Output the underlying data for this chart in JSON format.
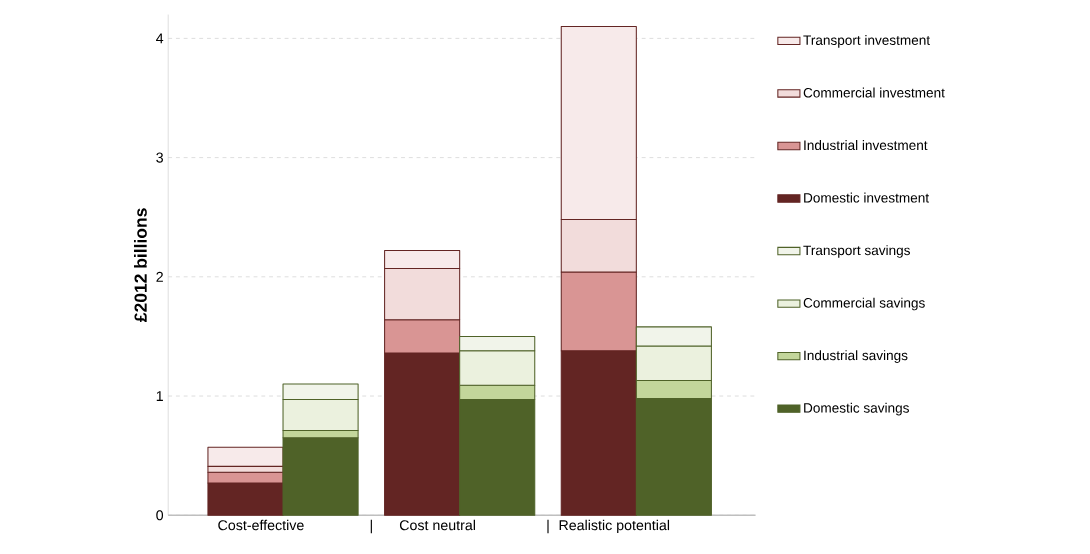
{
  "chart_data": {
    "type": "bar",
    "stacked": true,
    "ylabel": "£2012 billions",
    "categories": [
      "Cost-effective",
      null,
      "Cost neutral",
      null,
      "Realistic potential",
      null
    ],
    "annotations": [
      "|",
      "|"
    ],
    "ylim": [
      0,
      4.2
    ],
    "yticks": [
      0,
      1,
      2,
      3,
      4
    ],
    "grid": "y",
    "legend": "right",
    "series": [
      {
        "name": "Domestic investment",
        "color": "#632523",
        "values": [
          0.27,
          null,
          1.36,
          null,
          1.38,
          null
        ]
      },
      {
        "name": "Industrial investment",
        "color": "#d99594",
        "values": [
          0.09,
          null,
          0.28,
          null,
          0.66,
          null
        ]
      },
      {
        "name": "Commercial investment",
        "color": "#f2dcdb",
        "values": [
          0.05,
          null,
          0.43,
          null,
          0.44,
          null
        ]
      },
      {
        "name": "Transport investment",
        "color": "#f7eaea",
        "values": [
          0.16,
          null,
          0.15,
          null,
          1.62,
          null
        ]
      },
      {
        "name": "Domestic savings",
        "color": "#4f6228",
        "values": [
          null,
          0.65,
          null,
          0.97,
          null,
          0.98
        ]
      },
      {
        "name": "Industrial savings",
        "color": "#c3d69b",
        "values": [
          null,
          0.06,
          null,
          0.12,
          null,
          0.15
        ]
      },
      {
        "name": "Commercial savings",
        "color": "#ebf1de",
        "values": [
          null,
          0.26,
          null,
          0.29,
          null,
          0.29
        ]
      },
      {
        "name": "Transport savings",
        "color": "#f1f4ea",
        "values": [
          null,
          0.13,
          null,
          0.12,
          null,
          0.16
        ]
      }
    ]
  }
}
